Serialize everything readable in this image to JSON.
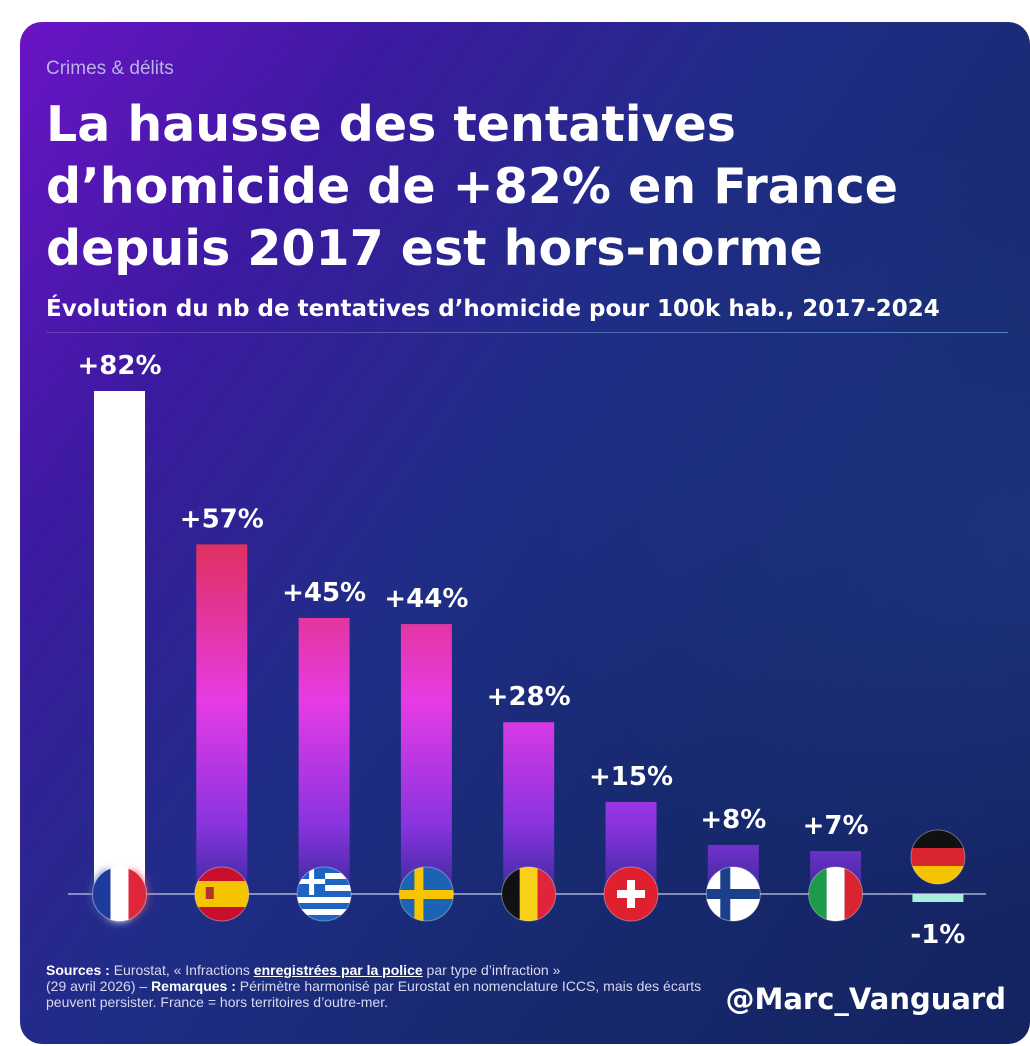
{
  "header": {
    "eyebrow": "Crimes & délits",
    "title": "La hausse des tentatives d’homicide de +82% en France depuis 2017 est hors-norme",
    "subtitle": "Évolution du nb de tentatives d’homicide pour 100k hab., 2017-2024"
  },
  "colors": {
    "highlight_bar": "#ffffff",
    "bar_top": "#e0305e",
    "bar_mid": "#e63be4",
    "bar_low": "#8a34e0",
    "bar_base": "#3b2a9c",
    "negative_bar": "#a8f0dc"
  },
  "chart_data": {
    "type": "bar",
    "title": "Évolution du nb de tentatives d’homicide pour 100k hab., 2017-2024",
    "xlabel": "",
    "ylabel": "",
    "unit": "%",
    "categories": [
      "France",
      "Spain",
      "Greece",
      "Sweden",
      "Belgium",
      "Switzerland",
      "Finland",
      "Italy",
      "Germany"
    ],
    "flag_icons": [
      "france-flag-icon",
      "spain-flag-icon",
      "greece-flag-icon",
      "sweden-flag-icon",
      "belgium-flag-icon",
      "switzerland-flag-icon",
      "finland-flag-icon",
      "italy-flag-icon",
      "germany-flag-icon"
    ],
    "values": [
      82,
      57,
      45,
      44,
      28,
      15,
      8,
      7,
      -1
    ],
    "labels": [
      "+82%",
      "+57%",
      "+45%",
      "+44%",
      "+28%",
      "+15%",
      "+8%",
      "+7%",
      "-1%"
    ],
    "highlight": "France",
    "grid": false,
    "legend": "none"
  },
  "footer": {
    "sources_label": "Sources :",
    "sources_text_1": "Eurostat, « Infractions",
    "sources_link": "enregistrées par la police",
    "sources_text_2": "par type d’infraction »",
    "sources_date": "(29 avril 2026) –",
    "remarks_label": "Remarques :",
    "remarks_text": "Périmètre harmonisé par Eurostat en nomenclature ICCS, mais des écarts peuvent persister. France = hors territoires d’outre-mer.",
    "handle": "@Marc_Vanguard"
  }
}
